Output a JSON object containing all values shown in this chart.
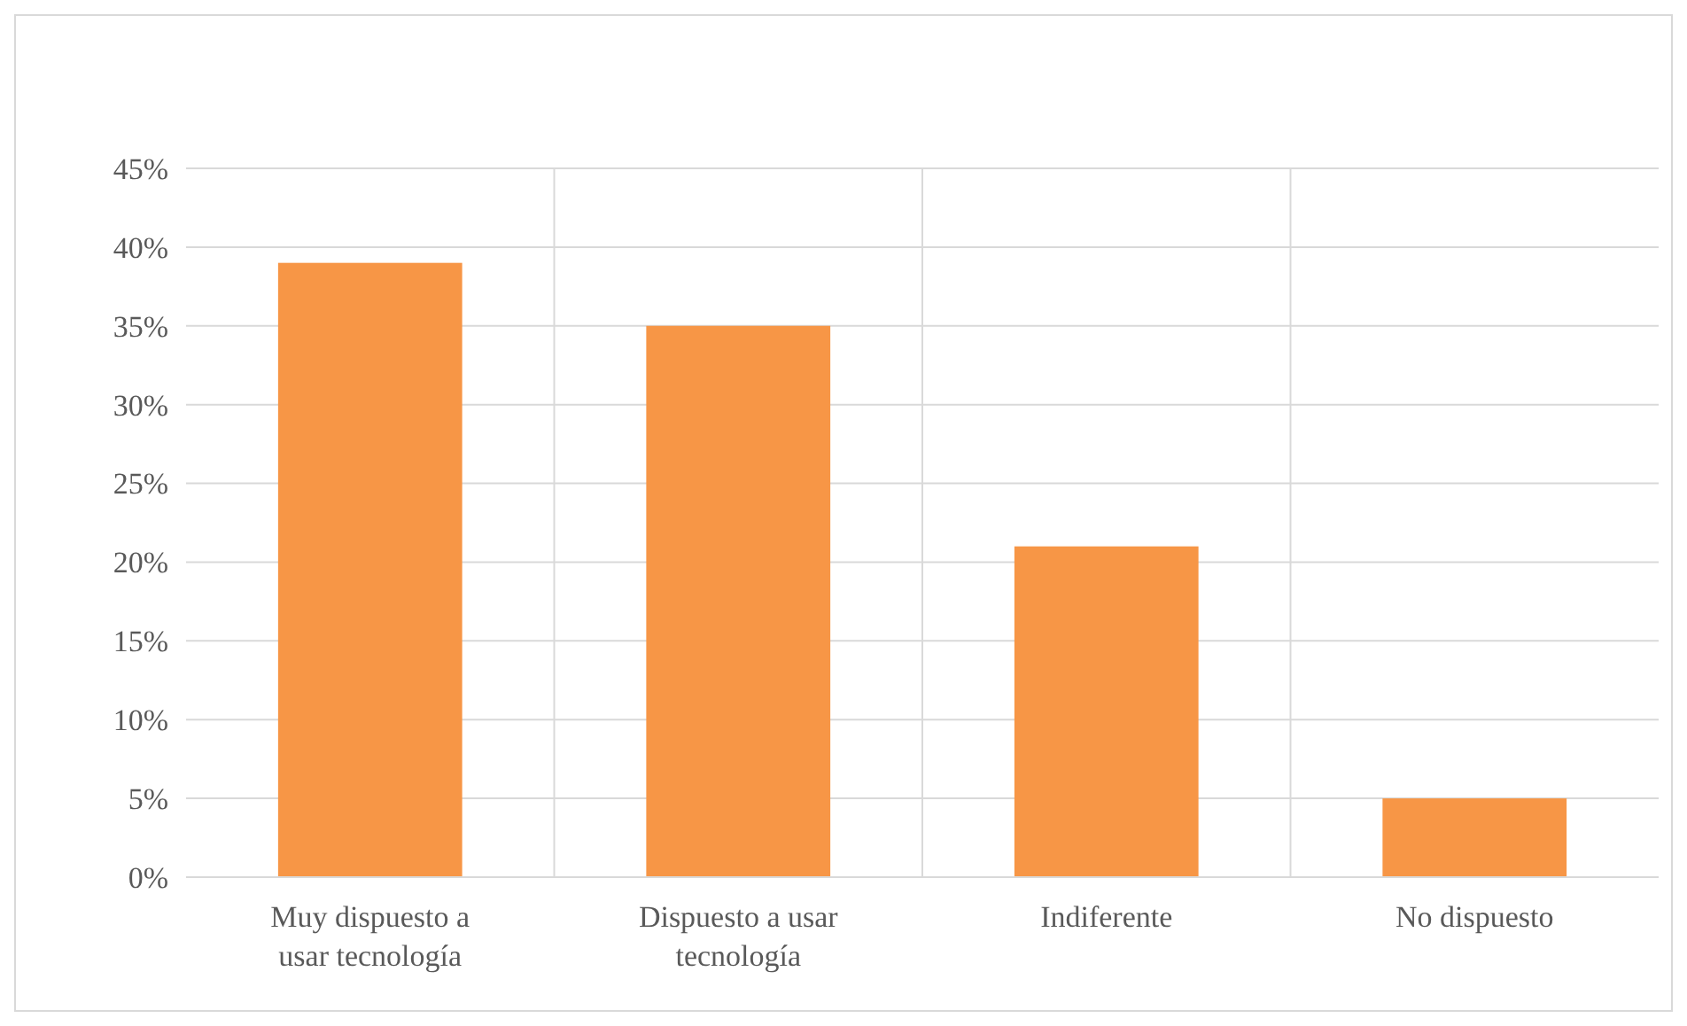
{
  "chart_data": {
    "type": "bar",
    "categories": [
      "Muy dispuesto a usar tecnología",
      "Dispuesto a usar tecnología",
      "Indiferente",
      "No dispuesto"
    ],
    "values": [
      39,
      35,
      21,
      5
    ],
    "color": "#f79646",
    "ylim": [
      0,
      45
    ],
    "yticks": [
      {
        "value": 0,
        "label": "0%"
      },
      {
        "value": 5,
        "label": "5%"
      },
      {
        "value": 10,
        "label": "10%"
      },
      {
        "value": 15,
        "label": "15%"
      },
      {
        "value": 20,
        "label": "20%"
      },
      {
        "value": 25,
        "label": "25%"
      },
      {
        "value": 30,
        "label": "30%"
      },
      {
        "value": 35,
        "label": "35%"
      },
      {
        "value": 40,
        "label": "40%"
      },
      {
        "value": 45,
        "label": "45%"
      }
    ],
    "grid": true
  }
}
